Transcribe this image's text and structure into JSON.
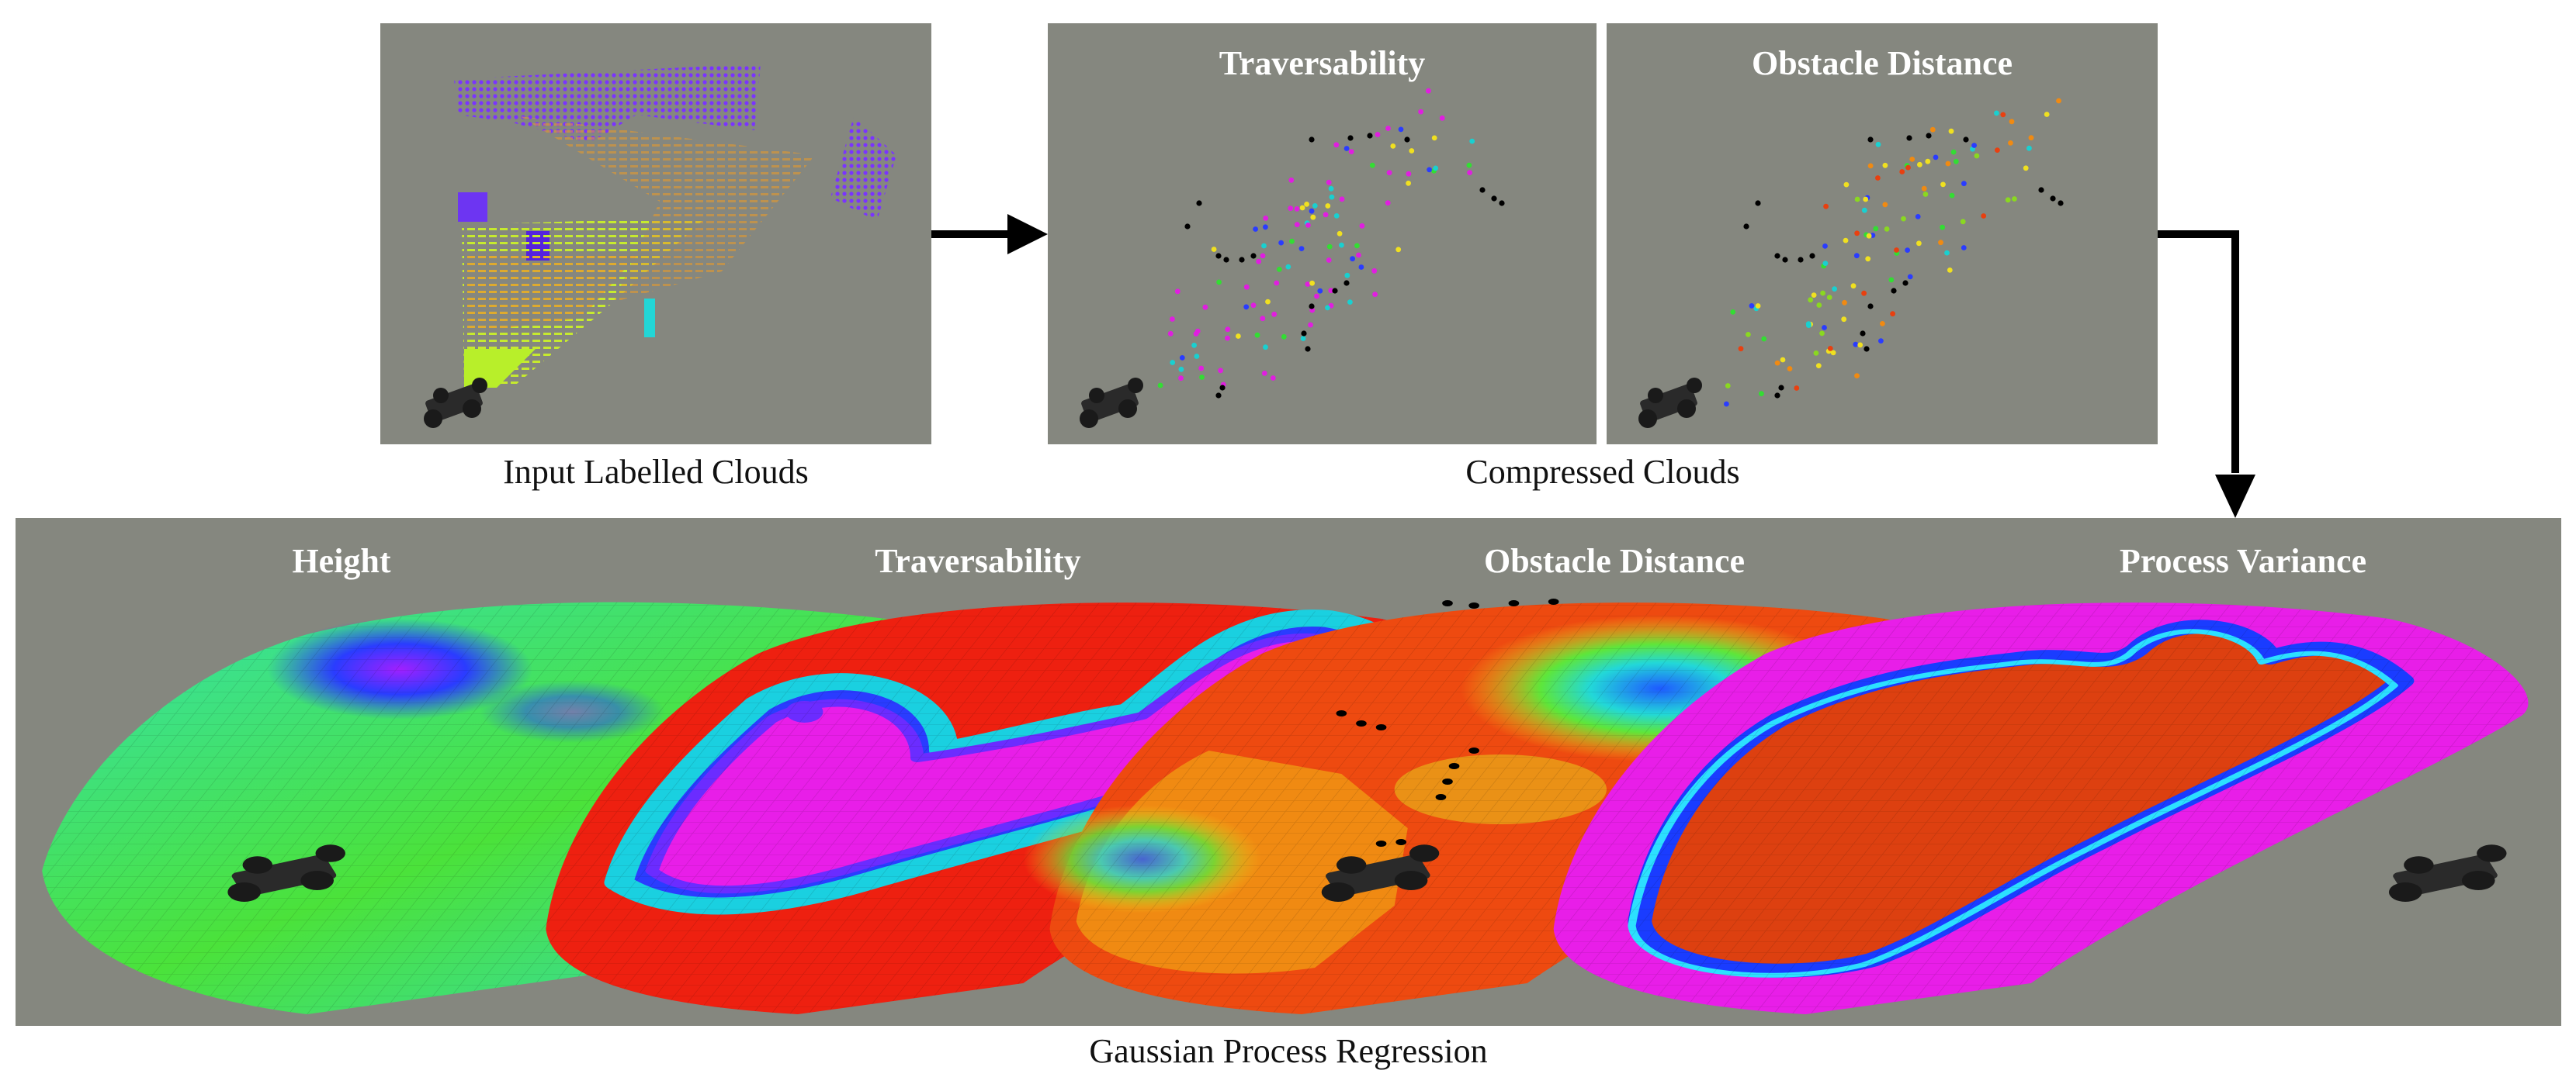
{
  "captions": {
    "input": "Input Labelled Clouds",
    "compressed": "Compressed Clouds",
    "gpr": "Gaussian Process Regression"
  },
  "compressed_titles": {
    "traversability": "Traversability",
    "obstacle_distance": "Obstacle Distance"
  },
  "map_titles": {
    "height": "Height",
    "traversability": "Traversability",
    "obstacle_distance": "Obstacle Distance",
    "process_variance": "Process Variance"
  },
  "colors": {
    "panel_bg": "#85877f",
    "arrow": "#000000",
    "robot": "#2a2a2a"
  },
  "icons": [
    "robot-icon",
    "arrow-right-icon",
    "arrow-down-icon"
  ]
}
